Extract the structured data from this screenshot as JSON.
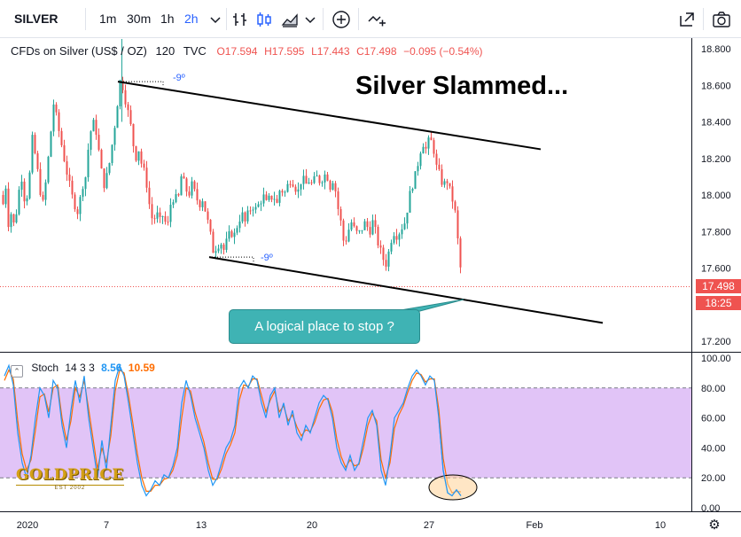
{
  "toolbar": {
    "symbol": "SILVER",
    "intervals": [
      "1m",
      "30m",
      "1h",
      "2h"
    ],
    "active_interval": "2h",
    "icons": [
      "chevron-down-icon",
      "bars-style-icon",
      "candles-style-icon",
      "area-chart-icon",
      "add-indicator-icon",
      "compare-icon",
      "snapshot-icon",
      "camera-icon"
    ]
  },
  "legend": {
    "title": "CFDs on Silver (US$ / OZ)",
    "interval": "120",
    "source": "TVC",
    "open": "O17.594",
    "high": "H17.595",
    "low": "L17.443",
    "close": "C17.498",
    "change": "−0.095 (−0.54%)"
  },
  "headline": "Silver Slammed...",
  "callout": "A logical place to stop ?",
  "angle_labels": [
    "-9º",
    "-9º"
  ],
  "price_badges": {
    "last": "17.498",
    "countdown": "18:25"
  },
  "stoch": {
    "title": "Stoch",
    "params": "14 3 3",
    "k_value": "8.56",
    "d_value": "10.59"
  },
  "logo": {
    "text": "GOLDPRICE",
    "sub": "EST 2002"
  },
  "colors": {
    "up": "#26a69a",
    "down": "#ef5350",
    "k_line": "#2196f3",
    "d_line": "#ff6d00",
    "stoch_band": "#e1c4f7",
    "callout": "#3fb3b4"
  },
  "chart_data": {
    "type": "candlestick",
    "x_ticks": [
      "2020",
      "7",
      "13",
      "20",
      "27",
      "Feb",
      "10"
    ],
    "price_ticks": [
      18.8,
      18.6,
      18.4,
      18.2,
      18.0,
      17.8,
      17.6,
      17.2
    ],
    "price_range": [
      17.1,
      18.85
    ],
    "price_path": [
      [
        0,
        18.1
      ],
      [
        3,
        17.95
      ],
      [
        6,
        18.05
      ],
      [
        9,
        17.85
      ],
      [
        12,
        17.9
      ],
      [
        16,
        17.82
      ],
      [
        20,
        18.0
      ],
      [
        24,
        18.1
      ],
      [
        28,
        17.95
      ],
      [
        32,
        18.05
      ],
      [
        36,
        18.3
      ],
      [
        40,
        18.2
      ],
      [
        44,
        18.05
      ],
      [
        48,
        17.95
      ],
      [
        52,
        18.1
      ],
      [
        56,
        18.3
      ],
      [
        60,
        18.5
      ],
      [
        64,
        18.4
      ],
      [
        68,
        18.3
      ],
      [
        72,
        18.2
      ],
      [
        76,
        18.1
      ],
      [
        80,
        18.0
      ],
      [
        84,
        17.95
      ],
      [
        88,
        17.9
      ],
      [
        92,
        18.05
      ],
      [
        96,
        18.1
      ],
      [
        100,
        18.3
      ],
      [
        104,
        18.4
      ],
      [
        108,
        18.35
      ],
      [
        112,
        18.2
      ],
      [
        116,
        18.05
      ],
      [
        120,
        18.1
      ],
      [
        124,
        18.2
      ],
      [
        128,
        18.35
      ],
      [
        131,
        18.45
      ],
      [
        134,
        18.62
      ],
      [
        137,
        18.62
      ],
      [
        140,
        18.55
      ],
      [
        144,
        18.45
      ],
      [
        148,
        18.35
      ],
      [
        152,
        18.2
      ],
      [
        156,
        18.25
      ],
      [
        160,
        18.15
      ],
      [
        164,
        18.1
      ],
      [
        168,
        17.95
      ],
      [
        172,
        17.85
      ],
      [
        176,
        17.9
      ],
      [
        180,
        17.85
      ],
      [
        184,
        17.9
      ],
      [
        188,
        17.8
      ],
      [
        192,
        17.95
      ],
      [
        196,
        18.0
      ],
      [
        200,
        17.95
      ],
      [
        204,
        18.1
      ],
      [
        208,
        18.05
      ],
      [
        212,
        18.0
      ],
      [
        216,
        18.05
      ],
      [
        220,
        18.0
      ],
      [
        224,
        17.95
      ],
      [
        228,
        17.98
      ],
      [
        232,
        17.9
      ],
      [
        236,
        17.8
      ],
      [
        240,
        17.7
      ],
      [
        244,
        17.72
      ],
      [
        248,
        17.75
      ],
      [
        252,
        17.7
      ],
      [
        256,
        17.75
      ],
      [
        260,
        17.8
      ],
      [
        264,
        17.78
      ],
      [
        268,
        17.85
      ],
      [
        272,
        17.9
      ],
      [
        276,
        17.85
      ],
      [
        280,
        17.9
      ],
      [
        284,
        17.95
      ],
      [
        288,
        17.92
      ],
      [
        292,
        17.95
      ],
      [
        296,
        18.0
      ],
      [
        300,
        17.95
      ],
      [
        304,
        17.98
      ],
      [
        308,
        18.0
      ],
      [
        312,
        17.95
      ],
      [
        316,
        18.05
      ],
      [
        320,
        18.0
      ],
      [
        324,
        18.05
      ],
      [
        328,
        18.1
      ],
      [
        332,
        18.05
      ],
      [
        336,
        18.02
      ],
      [
        340,
        18.1
      ],
      [
        344,
        18.05
      ],
      [
        348,
        18.08
      ],
      [
        352,
        18.05
      ],
      [
        356,
        18.1
      ],
      [
        360,
        18.08
      ],
      [
        364,
        18.1
      ],
      [
        368,
        18.12
      ],
      [
        372,
        18.05
      ],
      [
        376,
        18.1
      ],
      [
        380,
        17.95
      ],
      [
        384,
        17.85
      ],
      [
        388,
        17.72
      ],
      [
        392,
        17.8
      ],
      [
        396,
        17.85
      ],
      [
        400,
        17.8
      ],
      [
        404,
        17.78
      ],
      [
        408,
        17.82
      ],
      [
        412,
        17.85
      ],
      [
        416,
        17.8
      ],
      [
        420,
        17.85
      ],
      [
        424,
        17.78
      ],
      [
        428,
        17.7
      ],
      [
        432,
        17.65
      ],
      [
        436,
        17.62
      ],
      [
        440,
        17.75
      ],
      [
        444,
        17.8
      ],
      [
        448,
        17.78
      ],
      [
        452,
        17.82
      ],
      [
        456,
        17.85
      ],
      [
        460,
        17.95
      ],
      [
        464,
        18.05
      ],
      [
        468,
        18.1
      ],
      [
        472,
        18.2
      ],
      [
        476,
        18.3
      ],
      [
        480,
        18.25
      ],
      [
        484,
        18.3
      ],
      [
        488,
        18.28
      ],
      [
        492,
        18.15
      ],
      [
        496,
        18.1
      ],
      [
        500,
        18.05
      ],
      [
        504,
        18.08
      ],
      [
        508,
        18.0
      ],
      [
        512,
        17.95
      ],
      [
        516,
        17.75
      ],
      [
        519,
        17.6
      ],
      [
        521,
        17.5
      ]
    ],
    "channel_upper": [
      [
        133,
        18.62
      ],
      [
        610,
        18.25
      ]
    ],
    "channel_lower": [
      [
        236,
        17.66
      ],
      [
        680,
        17.3
      ]
    ],
    "stoch_range": [
      0,
      100
    ],
    "stoch_ticks": [
      100,
      80,
      60,
      40,
      20,
      0
    ],
    "stoch_band": [
      20,
      80
    ],
    "stoch_k": [
      [
        5,
        88
      ],
      [
        10,
        95
      ],
      [
        15,
        82
      ],
      [
        20,
        50
      ],
      [
        25,
        30
      ],
      [
        30,
        20
      ],
      [
        35,
        35
      ],
      [
        40,
        60
      ],
      [
        45,
        80
      ],
      [
        50,
        75
      ],
      [
        55,
        60
      ],
      [
        60,
        85
      ],
      [
        65,
        80
      ],
      [
        70,
        55
      ],
      [
        75,
        40
      ],
      [
        80,
        65
      ],
      [
        85,
        85
      ],
      [
        90,
        70
      ],
      [
        95,
        88
      ],
      [
        100,
        60
      ],
      [
        105,
        40
      ],
      [
        110,
        20
      ],
      [
        115,
        45
      ],
      [
        120,
        25
      ],
      [
        125,
        55
      ],
      [
        130,
        85
      ],
      [
        135,
        95
      ],
      [
        140,
        88
      ],
      [
        145,
        70
      ],
      [
        150,
        50
      ],
      [
        155,
        30
      ],
      [
        160,
        15
      ],
      [
        165,
        8
      ],
      [
        170,
        12
      ],
      [
        175,
        18
      ],
      [
        180,
        15
      ],
      [
        185,
        22
      ],
      [
        190,
        20
      ],
      [
        195,
        28
      ],
      [
        200,
        40
      ],
      [
        205,
        70
      ],
      [
        210,
        85
      ],
      [
        215,
        75
      ],
      [
        220,
        60
      ],
      [
        225,
        50
      ],
      [
        230,
        40
      ],
      [
        235,
        25
      ],
      [
        240,
        15
      ],
      [
        245,
        20
      ],
      [
        250,
        30
      ],
      [
        255,
        40
      ],
      [
        260,
        45
      ],
      [
        265,
        55
      ],
      [
        270,
        80
      ],
      [
        275,
        85
      ],
      [
        280,
        80
      ],
      [
        285,
        88
      ],
      [
        290,
        85
      ],
      [
        295,
        70
      ],
      [
        300,
        60
      ],
      [
        305,
        75
      ],
      [
        310,
        80
      ],
      [
        315,
        60
      ],
      [
        320,
        70
      ],
      [
        325,
        55
      ],
      [
        330,
        65
      ],
      [
        335,
        50
      ],
      [
        340,
        45
      ],
      [
        345,
        55
      ],
      [
        350,
        50
      ],
      [
        355,
        60
      ],
      [
        360,
        70
      ],
      [
        365,
        75
      ],
      [
        370,
        72
      ],
      [
        375,
        60
      ],
      [
        380,
        40
      ],
      [
        385,
        30
      ],
      [
        390,
        25
      ],
      [
        395,
        35
      ],
      [
        400,
        25
      ],
      [
        405,
        30
      ],
      [
        410,
        45
      ],
      [
        415,
        60
      ],
      [
        420,
        65
      ],
      [
        425,
        55
      ],
      [
        430,
        25
      ],
      [
        435,
        15
      ],
      [
        440,
        35
      ],
      [
        445,
        60
      ],
      [
        450,
        65
      ],
      [
        455,
        70
      ],
      [
        460,
        80
      ],
      [
        465,
        88
      ],
      [
        470,
        92
      ],
      [
        475,
        88
      ],
      [
        480,
        82
      ],
      [
        485,
        88
      ],
      [
        490,
        85
      ],
      [
        495,
        60
      ],
      [
        500,
        25
      ],
      [
        505,
        10
      ],
      [
        510,
        8
      ],
      [
        515,
        12
      ],
      [
        520,
        8
      ]
    ],
    "stoch_d": [
      [
        5,
        85
      ],
      [
        10,
        92
      ],
      [
        15,
        86
      ],
      [
        20,
        58
      ],
      [
        25,
        36
      ],
      [
        30,
        25
      ],
      [
        35,
        32
      ],
      [
        40,
        52
      ],
      [
        45,
        74
      ],
      [
        50,
        76
      ],
      [
        55,
        64
      ],
      [
        60,
        80
      ],
      [
        65,
        82
      ],
      [
        70,
        60
      ],
      [
        75,
        45
      ],
      [
        80,
        58
      ],
      [
        85,
        80
      ],
      [
        90,
        74
      ],
      [
        95,
        85
      ],
      [
        100,
        66
      ],
      [
        105,
        46
      ],
      [
        110,
        26
      ],
      [
        115,
        40
      ],
      [
        120,
        30
      ],
      [
        125,
        48
      ],
      [
        130,
        78
      ],
      [
        135,
        92
      ],
      [
        140,
        90
      ],
      [
        145,
        75
      ],
      [
        150,
        56
      ],
      [
        155,
        36
      ],
      [
        160,
        20
      ],
      [
        165,
        11
      ],
      [
        170,
        11
      ],
      [
        175,
        15
      ],
      [
        180,
        15
      ],
      [
        185,
        19
      ],
      [
        190,
        20
      ],
      [
        195,
        25
      ],
      [
        200,
        35
      ],
      [
        205,
        60
      ],
      [
        210,
        80
      ],
      [
        215,
        78
      ],
      [
        220,
        64
      ],
      [
        225,
        54
      ],
      [
        230,
        44
      ],
      [
        235,
        30
      ],
      [
        240,
        19
      ],
      [
        245,
        19
      ],
      [
        250,
        26
      ],
      [
        255,
        36
      ],
      [
        260,
        42
      ],
      [
        265,
        50
      ],
      [
        270,
        72
      ],
      [
        275,
        82
      ],
      [
        280,
        81
      ],
      [
        285,
        86
      ],
      [
        290,
        86
      ],
      [
        295,
        75
      ],
      [
        300,
        64
      ],
      [
        305,
        72
      ],
      [
        310,
        78
      ],
      [
        315,
        64
      ],
      [
        320,
        68
      ],
      [
        325,
        58
      ],
      [
        330,
        62
      ],
      [
        335,
        54
      ],
      [
        340,
        48
      ],
      [
        345,
        52
      ],
      [
        350,
        51
      ],
      [
        355,
        57
      ],
      [
        360,
        66
      ],
      [
        365,
        72
      ],
      [
        370,
        73
      ],
      [
        375,
        64
      ],
      [
        380,
        46
      ],
      [
        385,
        34
      ],
      [
        390,
        27
      ],
      [
        395,
        32
      ],
      [
        400,
        28
      ],
      [
        405,
        29
      ],
      [
        410,
        40
      ],
      [
        415,
        55
      ],
      [
        420,
        63
      ],
      [
        425,
        58
      ],
      [
        430,
        32
      ],
      [
        435,
        20
      ],
      [
        440,
        30
      ],
      [
        445,
        53
      ],
      [
        450,
        62
      ],
      [
        455,
        68
      ],
      [
        460,
        77
      ],
      [
        465,
        85
      ],
      [
        470,
        90
      ],
      [
        475,
        89
      ],
      [
        480,
        84
      ],
      [
        485,
        86
      ],
      [
        490,
        86
      ],
      [
        495,
        66
      ],
      [
        500,
        33
      ],
      [
        505,
        16
      ],
      [
        510,
        10
      ],
      [
        515,
        11
      ],
      [
        520,
        10.6
      ]
    ]
  }
}
